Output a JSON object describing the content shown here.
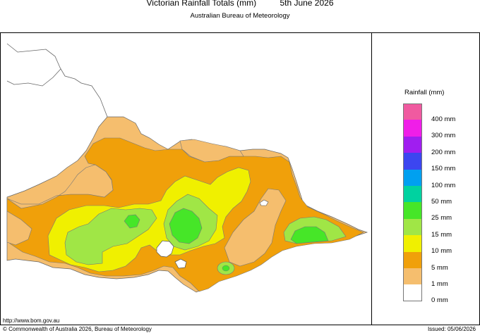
{
  "header": {
    "title": "Victorian Rainfall Totals (mm)",
    "date": "5th June 2026",
    "agency": "Australian Bureau of Meteorology"
  },
  "legend": {
    "title": "Rainfall (mm)",
    "items": [
      {
        "label": "400 mm",
        "color": "#f05aa0"
      },
      {
        "label": "300 mm",
        "color": "#f01ee8"
      },
      {
        "label": "200 mm",
        "color": "#a01ef0"
      },
      {
        "label": "150 mm",
        "color": "#3c46f0"
      },
      {
        "label": "100 mm",
        "color": "#00a0f0"
      },
      {
        "label": "50 mm",
        "color": "#00d2a0"
      },
      {
        "label": "25 mm",
        "color": "#46e628"
      },
      {
        "label": "15 mm",
        "color": "#a0e646"
      },
      {
        "label": "10 mm",
        "color": "#f0f000"
      },
      {
        "label": "5 mm",
        "color": "#f0a00a"
      },
      {
        "label": "1 mm",
        "color": "#f5be6e"
      },
      {
        "label": "0 mm",
        "color": "#ffffff"
      }
    ]
  },
  "footer": {
    "url": "http://www.bom.gov.au",
    "copyright": "© Commonwealth of Australia 2026, Bureau of Meteorology",
    "issued": "Issued: 05/06/2026"
  }
}
